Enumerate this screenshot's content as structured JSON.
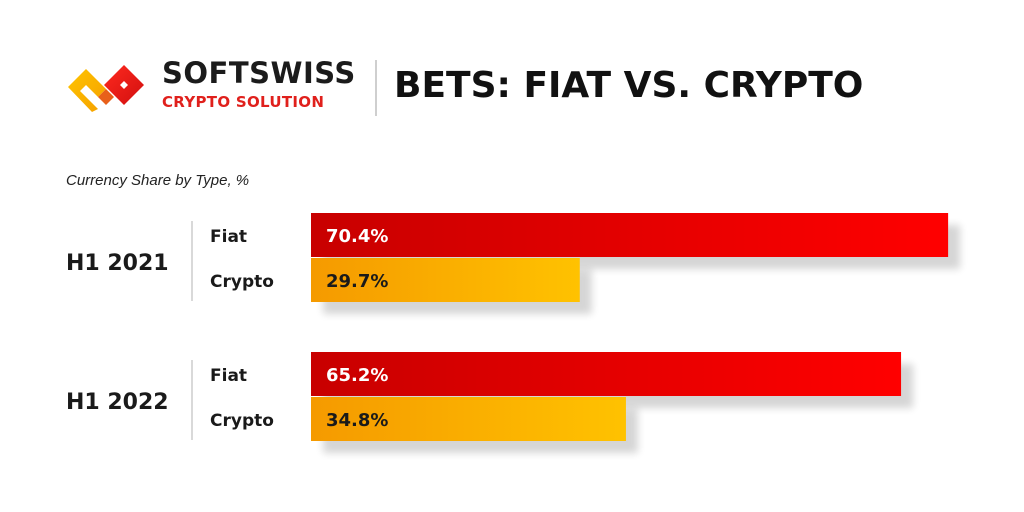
{
  "header": {
    "brand_name": "SOFTSWISS",
    "brand_sub": "CRYPTO SOLUTION",
    "title": "BETS: FIAT VS. CRYPTO",
    "logo_icon": "interlocking-diamond-logo-icon"
  },
  "chart_data": {
    "type": "bar",
    "orientation": "horizontal",
    "title": "BETS: FIAT VS. CRYPTO",
    "subtitle": "Currency Share by Type, %",
    "groups": [
      "H1 2021",
      "H1 2022"
    ],
    "categories": [
      "Fiat",
      "Crypto"
    ],
    "series": [
      {
        "group": "H1 2021",
        "values": [
          70.4,
          29.7
        ],
        "labels": [
          "70.4%",
          "29.7%"
        ]
      },
      {
        "group": "H1 2022",
        "values": [
          65.2,
          34.8
        ],
        "labels": [
          "65.2%",
          "34.8%"
        ]
      }
    ],
    "xlim": [
      0,
      100
    ],
    "grid": false,
    "colors": {
      "fiat_start": "#c80000",
      "fiat_end": "#ff0000",
      "crypto_start": "#f59a00",
      "crypto_end": "#ffc200"
    }
  }
}
